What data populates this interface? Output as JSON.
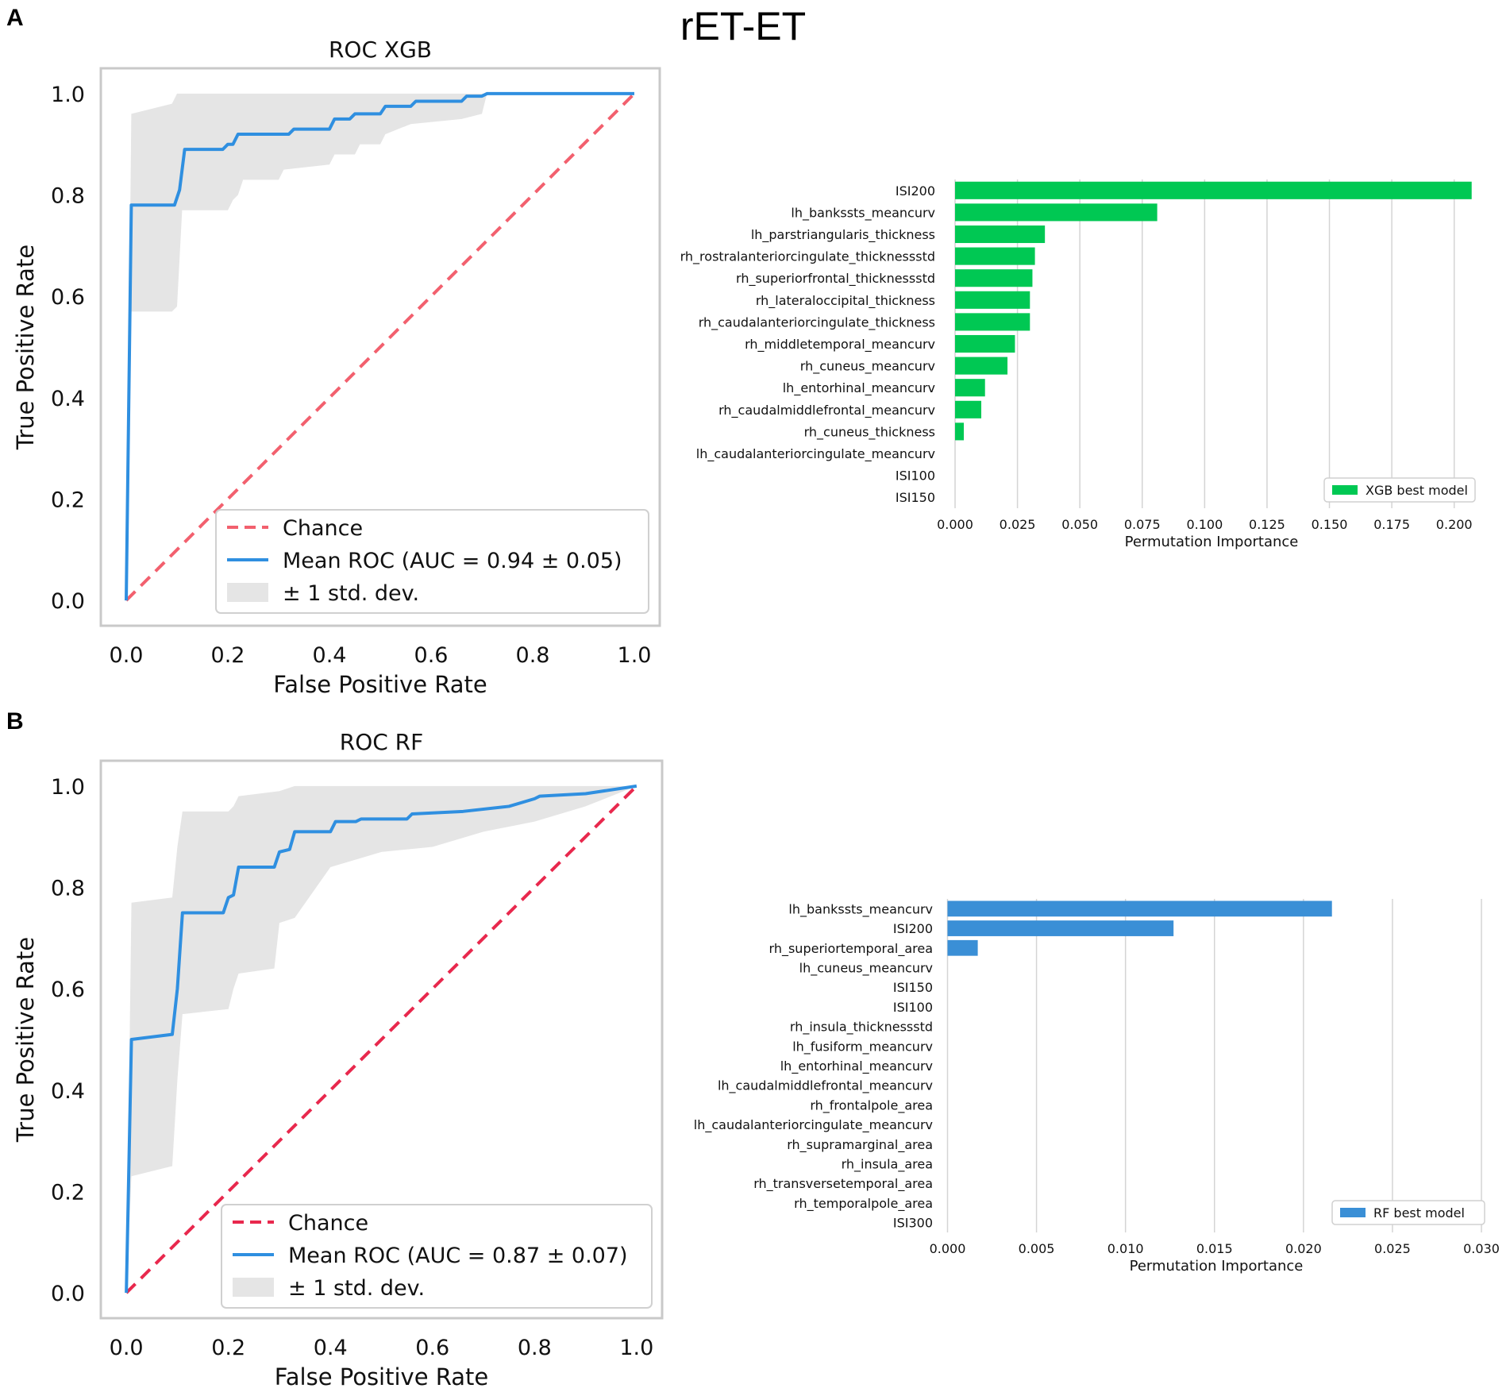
{
  "figure": {
    "title": "rET-ET",
    "panel_a_label": "A",
    "panel_b_label": "B"
  },
  "colors": {
    "roc_line": "#2f8fe0",
    "chance_a": "#f2606e",
    "chance_b": "#e8284d",
    "band": "#e5e5e5",
    "frame": "#c9c9c9",
    "xgb_bar": "#00c853",
    "rf_bar": "#3a8fd6",
    "grid": "#d4d4d4"
  },
  "chart_data": [
    {
      "id": "roc_xgb",
      "type": "line",
      "title": "ROC XGB",
      "xlabel": "False Positive Rate",
      "ylabel": "True Positive Rate",
      "xlim": [
        -0.05,
        1.05
      ],
      "ylim": [
        -0.05,
        1.05
      ],
      "xticks": [
        "0.0",
        "0.2",
        "0.4",
        "0.6",
        "0.8",
        "1.0"
      ],
      "yticks": [
        "0.0",
        "0.2",
        "0.4",
        "0.6",
        "0.8",
        "1.0"
      ],
      "legend": [
        "Chance",
        "Mean ROC (AUC = 0.94 ± 0.05)",
        "± 1 std. dev."
      ],
      "legend_position": "lower-right",
      "chance": [
        [
          0,
          0
        ],
        [
          1,
          1
        ]
      ],
      "mean_roc": [
        [
          0,
          0
        ],
        [
          0.01,
          0.78
        ],
        [
          0.095,
          0.78
        ],
        [
          0.105,
          0.81
        ],
        [
          0.115,
          0.89
        ],
        [
          0.19,
          0.89
        ],
        [
          0.2,
          0.9
        ],
        [
          0.21,
          0.9
        ],
        [
          0.22,
          0.92
        ],
        [
          0.32,
          0.92
        ],
        [
          0.33,
          0.93
        ],
        [
          0.4,
          0.93
        ],
        [
          0.41,
          0.95
        ],
        [
          0.44,
          0.95
        ],
        [
          0.45,
          0.96
        ],
        [
          0.5,
          0.96
        ],
        [
          0.51,
          0.975
        ],
        [
          0.56,
          0.975
        ],
        [
          0.57,
          0.985
        ],
        [
          0.66,
          0.985
        ],
        [
          0.67,
          0.995
        ],
        [
          0.7,
          0.995
        ],
        [
          0.71,
          1.0
        ],
        [
          1,
          1
        ]
      ],
      "band_upper": [
        [
          0,
          0
        ],
        [
          0.01,
          0.96
        ],
        [
          0.09,
          0.98
        ],
        [
          0.1,
          1.0
        ],
        [
          1,
          1
        ]
      ],
      "band_lower": [
        [
          0,
          0
        ],
        [
          0.01,
          0.57
        ],
        [
          0.09,
          0.57
        ],
        [
          0.1,
          0.58
        ],
        [
          0.11,
          0.77
        ],
        [
          0.2,
          0.77
        ],
        [
          0.21,
          0.79
        ],
        [
          0.22,
          0.8
        ],
        [
          0.23,
          0.83
        ],
        [
          0.3,
          0.83
        ],
        [
          0.31,
          0.85
        ],
        [
          0.4,
          0.86
        ],
        [
          0.41,
          0.88
        ],
        [
          0.45,
          0.88
        ],
        [
          0.46,
          0.9
        ],
        [
          0.5,
          0.9
        ],
        [
          0.51,
          0.92
        ],
        [
          0.56,
          0.94
        ],
        [
          0.66,
          0.95
        ],
        [
          0.7,
          0.96
        ],
        [
          0.71,
          1.0
        ],
        [
          1,
          1
        ]
      ]
    },
    {
      "id": "perm_xgb",
      "type": "bar",
      "orientation": "horizontal",
      "title": "",
      "xlabel": "Permutation Importance",
      "xlim": [
        -0.0035,
        0.209
      ],
      "xticks": [
        0,
        0.025,
        0.05,
        0.075,
        0.1,
        0.125,
        0.15,
        0.175,
        0.2
      ],
      "xtick_labels": [
        "0.000",
        "0.025",
        "0.050",
        "0.075",
        "0.100",
        "0.125",
        "0.150",
        "0.175",
        "0.200"
      ],
      "grid": true,
      "legend": [
        "XGB best model"
      ],
      "legend_position": "lower-right",
      "categories": [
        "ISI200",
        "lh_bankssts_meancurv",
        "lh_parstriangularis_thickness",
        "rh_rostralanteriorcingulate_thicknessstd",
        "rh_superiorfrontal_thicknessstd",
        "rh_lateraloccipital_thickness",
        "rh_caudalanteriorcingulate_thickness",
        "rh_middletemporal_meancurv",
        "rh_cuneus_meancurv",
        "lh_entorhinal_meancurv",
        "rh_caudalmiddlefrontal_meancurv",
        "rh_cuneus_thickness",
        "lh_caudalanteriorcingulate_meancurv",
        "ISI100",
        "ISI150"
      ],
      "values": [
        0.207,
        0.081,
        0.036,
        0.032,
        0.031,
        0.03,
        0.03,
        0.024,
        0.021,
        0.012,
        0.0105,
        0.0035,
        0.0,
        0.0,
        0.0
      ]
    },
    {
      "id": "roc_rf",
      "type": "line",
      "title": "ROC RF",
      "xlabel": "False Positive Rate",
      "ylabel": "True Positive Rate",
      "xlim": [
        -0.05,
        1.05
      ],
      "ylim": [
        -0.05,
        1.05
      ],
      "xticks": [
        "0.0",
        "0.2",
        "0.4",
        "0.6",
        "0.8",
        "1.0"
      ],
      "yticks": [
        "0.0",
        "0.2",
        "0.4",
        "0.6",
        "0.8",
        "1.0"
      ],
      "legend": [
        "Chance",
        "Mean ROC (AUC = 0.87 ± 0.07)",
        "± 1 std. dev."
      ],
      "legend_position": "lower-right",
      "chance": [
        [
          0,
          0
        ],
        [
          1,
          1
        ]
      ],
      "mean_roc": [
        [
          0,
          0
        ],
        [
          0.01,
          0.5
        ],
        [
          0.09,
          0.51
        ],
        [
          0.1,
          0.6
        ],
        [
          0.11,
          0.75
        ],
        [
          0.19,
          0.75
        ],
        [
          0.2,
          0.78
        ],
        [
          0.21,
          0.785
        ],
        [
          0.22,
          0.84
        ],
        [
          0.29,
          0.84
        ],
        [
          0.3,
          0.87
        ],
        [
          0.32,
          0.875
        ],
        [
          0.33,
          0.91
        ],
        [
          0.4,
          0.91
        ],
        [
          0.41,
          0.93
        ],
        [
          0.45,
          0.93
        ],
        [
          0.46,
          0.935
        ],
        [
          0.55,
          0.935
        ],
        [
          0.56,
          0.945
        ],
        [
          0.66,
          0.95
        ],
        [
          0.75,
          0.96
        ],
        [
          0.8,
          0.975
        ],
        [
          0.81,
          0.98
        ],
        [
          0.9,
          0.985
        ],
        [
          1,
          1
        ]
      ],
      "band_upper": [
        [
          0,
          0
        ],
        [
          0.01,
          0.77
        ],
        [
          0.09,
          0.78
        ],
        [
          0.1,
          0.88
        ],
        [
          0.11,
          0.95
        ],
        [
          0.2,
          0.95
        ],
        [
          0.21,
          0.96
        ],
        [
          0.22,
          0.98
        ],
        [
          0.3,
          0.99
        ],
        [
          0.33,
          1.0
        ],
        [
          1,
          1
        ]
      ],
      "band_lower": [
        [
          0,
          0
        ],
        [
          0.01,
          0.23
        ],
        [
          0.09,
          0.25
        ],
        [
          0.1,
          0.42
        ],
        [
          0.11,
          0.55
        ],
        [
          0.2,
          0.56
        ],
        [
          0.21,
          0.6
        ],
        [
          0.22,
          0.63
        ],
        [
          0.29,
          0.64
        ],
        [
          0.3,
          0.73
        ],
        [
          0.33,
          0.74
        ],
        [
          0.4,
          0.84
        ],
        [
          0.5,
          0.87
        ],
        [
          0.6,
          0.88
        ],
        [
          0.7,
          0.91
        ],
        [
          0.8,
          0.93
        ],
        [
          0.9,
          0.96
        ],
        [
          1,
          1
        ]
      ]
    },
    {
      "id": "perm_rf",
      "type": "bar",
      "orientation": "horizontal",
      "title": "",
      "xlabel": "Permutation Importance",
      "xlim": [
        -0.0002,
        0.0304
      ],
      "xticks": [
        0,
        0.005,
        0.01,
        0.015,
        0.02,
        0.025,
        0.03
      ],
      "xtick_labels": [
        "0.000",
        "0.005",
        "0.010",
        "0.015",
        "0.020",
        "0.025",
        "0.030"
      ],
      "grid": true,
      "legend": [
        "RF best model"
      ],
      "legend_position": "lower-right",
      "categories": [
        "lh_bankssts_meancurv",
        "ISI200",
        "rh_superiortemporal_area",
        "lh_cuneus_meancurv",
        "ISI150",
        "ISI100",
        "rh_insula_thicknessstd",
        "lh_fusiform_meancurv",
        "lh_entorhinal_meancurv",
        "lh_caudalmiddlefrontal_meancurv",
        "rh_frontalpole_area",
        "lh_caudalanteriorcingulate_meancurv",
        "rh_supramarginal_area",
        "rh_insula_area",
        "rh_transversetemporal_area",
        "rh_temporalpole_area",
        "ISI300"
      ],
      "values": [
        0.0216,
        0.0127,
        0.0017,
        0,
        0,
        0,
        0,
        0,
        0,
        0,
        0,
        0,
        0,
        0,
        0,
        0,
        0
      ]
    }
  ]
}
